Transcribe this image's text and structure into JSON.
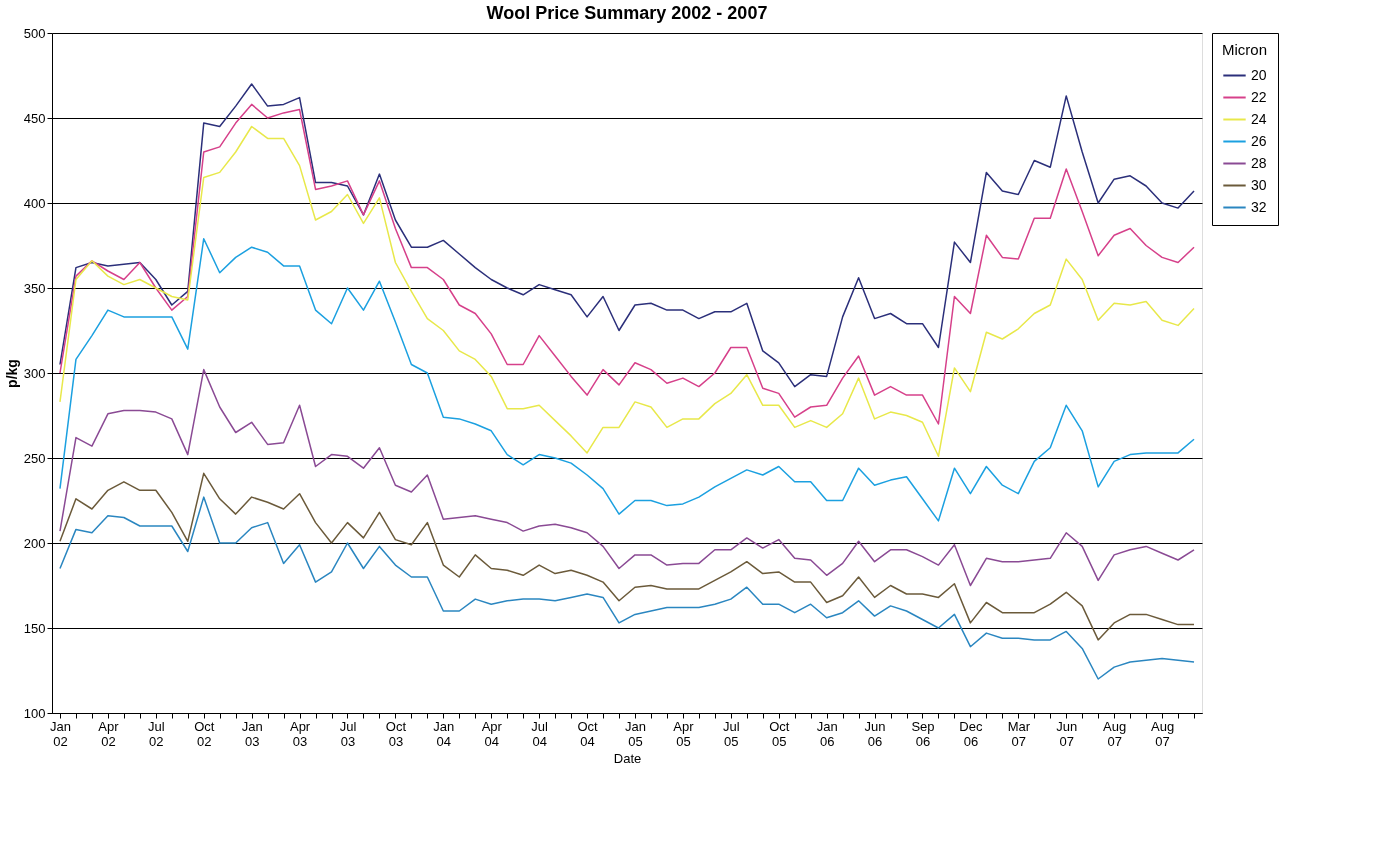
{
  "chart_data": {
    "type": "line",
    "title": "Wool Price Summary 2002 - 2007",
    "xlabel": "Date",
    "ylabel": "p/kg",
    "legend_title": "Micron",
    "categories": [
      "Jan 02",
      null,
      null,
      "Apr 02",
      null,
      null,
      "Jul 02",
      null,
      null,
      "Oct 02",
      null,
      null,
      "Jan 03",
      null,
      null,
      "Apr 03",
      null,
      null,
      "Jul 03",
      null,
      null,
      "Oct 03",
      null,
      null,
      "Jan 04",
      null,
      null,
      "Apr 04",
      null,
      null,
      "Jul 04",
      null,
      null,
      "Oct 04",
      null,
      null,
      "Jan 05",
      null,
      null,
      "Apr 05",
      null,
      null,
      "Jul 05",
      null,
      null,
      "Oct 05",
      null,
      null,
      "Jan 06",
      null,
      null,
      "Jun 06",
      null,
      null,
      "Sep 06",
      null,
      null,
      "Dec 06",
      null,
      null,
      "Mar 07",
      null,
      null,
      "Jun 07",
      null,
      null,
      "Aug 07",
      null,
      null,
      "Aug 07",
      null,
      null
    ],
    "series": [
      {
        "name": "20",
        "color": "#2b2f7a",
        "values": [
          305,
          362,
          365,
          363,
          364,
          365,
          355,
          340,
          348,
          447,
          445,
          457,
          470,
          457,
          458,
          462,
          412,
          412,
          410,
          393,
          417,
          390,
          374,
          374,
          378,
          370,
          362,
          355,
          350,
          346,
          352,
          349,
          346,
          333,
          345,
          325,
          340,
          341,
          337,
          337,
          332,
          336,
          336,
          341,
          313,
          306,
          292,
          299,
          298,
          333,
          356,
          332,
          335,
          329,
          329,
          315,
          377,
          365,
          418,
          407,
          405,
          425,
          421,
          463,
          430,
          400,
          414,
          416,
          410,
          400,
          397,
          407
        ]
      },
      {
        "name": "22",
        "color": "#d6408a",
        "values": [
          300,
          357,
          366,
          360,
          355,
          365,
          350,
          337,
          345,
          430,
          433,
          447,
          458,
          450,
          453,
          455,
          408,
          410,
          413,
          393,
          413,
          385,
          362,
          362,
          355,
          340,
          335,
          323,
          305,
          305,
          322,
          310,
          298,
          287,
          302,
          293,
          306,
          302,
          294,
          297,
          292,
          300,
          315,
          315,
          291,
          288,
          274,
          280,
          281,
          297,
          310,
          287,
          292,
          287,
          287,
          270,
          345,
          335,
          381,
          368,
          367,
          391,
          391,
          420,
          395,
          369,
          381,
          385,
          375,
          368,
          365,
          374
        ]
      },
      {
        "name": "24",
        "color": "#e8e84a",
        "values": [
          283,
          355,
          366,
          357,
          352,
          355,
          350,
          345,
          343,
          415,
          418,
          430,
          445,
          438,
          438,
          422,
          390,
          395,
          405,
          388,
          403,
          365,
          348,
          332,
          325,
          313,
          308,
          298,
          279,
          279,
          281,
          272,
          263,
          253,
          268,
          268,
          283,
          280,
          268,
          273,
          273,
          282,
          288,
          299,
          281,
          281,
          268,
          272,
          268,
          276,
          297,
          273,
          277,
          275,
          271,
          251,
          303,
          289,
          324,
          320,
          326,
          335,
          340,
          367,
          355,
          331,
          341,
          340,
          342,
          331,
          328,
          338
        ]
      },
      {
        "name": "26",
        "color": "#1ba0e0",
        "values": [
          232,
          308,
          322,
          337,
          333,
          333,
          333,
          333,
          314,
          379,
          359,
          368,
          374,
          371,
          363,
          363,
          337,
          329,
          350,
          337,
          354,
          330,
          305,
          300,
          274,
          273,
          270,
          266,
          252,
          246,
          252,
          250,
          247,
          240,
          232,
          217,
          225,
          225,
          222,
          223,
          227,
          233,
          238,
          243,
          240,
          245,
          236,
          236,
          225,
          225,
          244,
          234,
          237,
          239,
          226,
          213,
          244,
          229,
          245,
          234,
          229,
          248,
          256,
          281,
          266,
          233,
          248,
          252,
          253,
          253,
          253,
          261
        ]
      },
      {
        "name": "28",
        "color": "#8a4a94",
        "values": [
          207,
          262,
          257,
          276,
          278,
          278,
          277,
          273,
          252,
          302,
          280,
          265,
          271,
          258,
          259,
          281,
          245,
          252,
          251,
          244,
          256,
          234,
          230,
          240,
          214,
          215,
          216,
          214,
          212,
          207,
          210,
          211,
          209,
          206,
          198,
          185,
          193,
          193,
          187,
          188,
          188,
          196,
          196,
          203,
          197,
          202,
          191,
          190,
          181,
          188,
          201,
          189,
          196,
          196,
          192,
          187,
          199,
          175,
          191,
          189,
          189,
          190,
          191,
          206,
          198,
          178,
          193,
          196,
          198,
          194,
          190,
          196
        ]
      },
      {
        "name": "30",
        "color": "#6b5a3a",
        "values": [
          201,
          226,
          220,
          231,
          236,
          231,
          231,
          218,
          201,
          241,
          226,
          217,
          227,
          224,
          220,
          229,
          212,
          200,
          212,
          203,
          218,
          202,
          199,
          212,
          187,
          180,
          193,
          185,
          184,
          181,
          187,
          182,
          184,
          181,
          177,
          166,
          174,
          175,
          173,
          173,
          173,
          178,
          183,
          189,
          182,
          183,
          177,
          177,
          165,
          169,
          180,
          168,
          175,
          170,
          170,
          168,
          176,
          153,
          165,
          159,
          159,
          159,
          164,
          171,
          163,
          143,
          153,
          158,
          158,
          155,
          152,
          152
        ]
      },
      {
        "name": "32",
        "color": "#2a86c0",
        "values": [
          185,
          208,
          206,
          216,
          215,
          210,
          210,
          210,
          195,
          227,
          200,
          200,
          209,
          212,
          188,
          199,
          177,
          183,
          200,
          185,
          198,
          187,
          180,
          180,
          160,
          160,
          167,
          164,
          166,
          167,
          167,
          166,
          168,
          170,
          168,
          153,
          158,
          160,
          162,
          162,
          162,
          164,
          167,
          174,
          164,
          164,
          159,
          164,
          156,
          159,
          166,
          157,
          163,
          160,
          155,
          150,
          158,
          139,
          147,
          144,
          144,
          143,
          143,
          148,
          138,
          120,
          127,
          130,
          131,
          132,
          131,
          130
        ]
      }
    ],
    "ylim": [
      100,
      500
    ],
    "yticks": [
      100,
      150,
      200,
      250,
      300,
      350,
      400,
      450,
      500
    ],
    "grid": "y",
    "legend": "right"
  }
}
